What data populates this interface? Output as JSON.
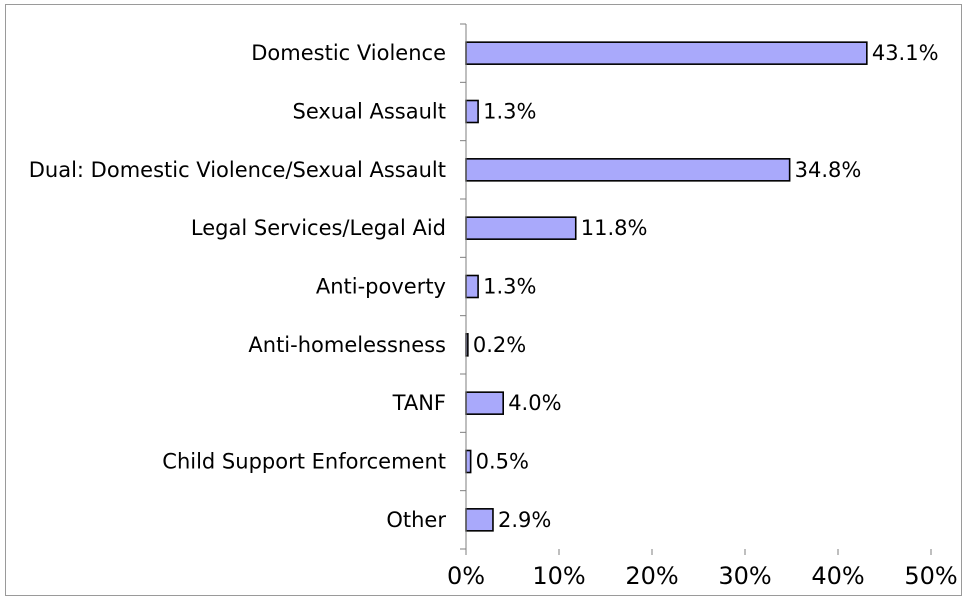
{
  "chart_data": {
    "type": "bar",
    "orientation": "horizontal",
    "categories": [
      "Domestic Violence",
      "Sexual Assault",
      "Dual: Domestic Violence/Sexual Assault",
      "Legal Services/Legal Aid",
      "Anti-poverty",
      "Anti-homelessness",
      "TANF",
      "Child Support Enforcement",
      "Other"
    ],
    "values": [
      43.1,
      1.3,
      34.8,
      11.8,
      1.3,
      0.2,
      4.0,
      0.5,
      2.9
    ],
    "value_labels": [
      "43.1%",
      "1.3%",
      "34.8%",
      "11.8%",
      "1.3%",
      "0.2%",
      "4.0%",
      "0.5%",
      "2.9%"
    ],
    "xlim": [
      0,
      50
    ],
    "x_ticks": [
      0,
      10,
      20,
      30,
      40,
      50
    ],
    "x_tick_labels": [
      "0%",
      "10%",
      "20%",
      "30%",
      "40%",
      "50%"
    ],
    "bar_color": "#a9a9fb",
    "bar_edge_color": "#000000",
    "grid": false,
    "legend": "none"
  }
}
